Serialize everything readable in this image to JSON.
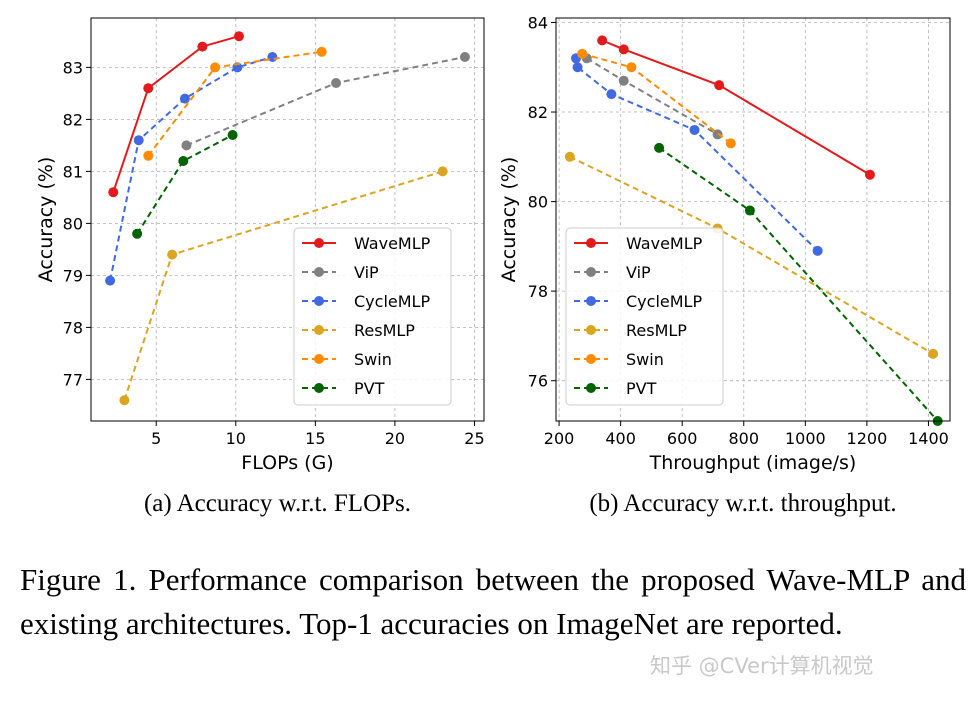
{
  "chart_data": [
    {
      "type": "line",
      "xlabel": "FLOPs (G)",
      "ylabel": "Accuracy (%)",
      "xlim": [
        0.9,
        25.6
      ],
      "ylim": [
        76.2,
        83.95
      ],
      "xticks": [
        5,
        10,
        15,
        20,
        25
      ],
      "yticks": [
        77,
        78,
        79,
        80,
        81,
        82,
        83
      ],
      "grid": true,
      "legend_position": "bottom-right",
      "caption": "(a) Accuracy w.r.t. FLOPs.",
      "series": [
        {
          "name": "WaveMLP",
          "color": "#e31a1c",
          "dash": "solid",
          "points": [
            [
              2.3,
              80.6
            ],
            [
              4.5,
              82.6
            ],
            [
              7.9,
              83.4
            ],
            [
              10.2,
              83.6
            ]
          ]
        },
        {
          "name": "ViP",
          "color": "#808080",
          "dash": "dashed",
          "points": [
            [
              6.9,
              81.5
            ],
            [
              16.3,
              82.7
            ],
            [
              24.4,
              83.2
            ]
          ]
        },
        {
          "name": "CycleMLP",
          "color": "#4169e1",
          "dash": "dashed",
          "points": [
            [
              2.1,
              78.9
            ],
            [
              3.9,
              81.6
            ],
            [
              6.8,
              82.4
            ],
            [
              10.1,
              83.0
            ],
            [
              12.3,
              83.2
            ]
          ]
        },
        {
          "name": "ResMLP",
          "color": "#daa520",
          "dash": "dashed",
          "points": [
            [
              3.0,
              76.6
            ],
            [
              6.0,
              79.4
            ],
            [
              23.0,
              81.0
            ]
          ]
        },
        {
          "name": "Swin",
          "color": "#ff8c00",
          "dash": "dashed",
          "points": [
            [
              4.5,
              81.3
            ],
            [
              8.7,
              83.0
            ],
            [
              15.4,
              83.3
            ]
          ]
        },
        {
          "name": "PVT",
          "color": "#006400",
          "dash": "dashed",
          "points": [
            [
              3.8,
              79.8
            ],
            [
              6.7,
              81.2
            ],
            [
              9.8,
              81.7
            ]
          ]
        }
      ]
    },
    {
      "type": "line",
      "xlabel": "Throughput (image/s)",
      "ylabel": "Accuracy (%)",
      "xlim": [
        190,
        1470
      ],
      "ylim": [
        75.1,
        84.1
      ],
      "xticks": [
        200,
        400,
        600,
        800,
        1000,
        1200,
        1400
      ],
      "yticks": [
        76,
        78,
        80,
        82,
        84
      ],
      "grid": true,
      "legend_position": "bottom-left",
      "caption": "(b) Accuracy w.r.t. throughput.",
      "series": [
        {
          "name": "WaveMLP",
          "color": "#e31a1c",
          "dash": "solid",
          "points": [
            [
              340,
              83.6
            ],
            [
              410,
              83.4
            ],
            [
              720,
              82.6
            ],
            [
              1210,
              80.6
            ]
          ]
        },
        {
          "name": "ViP",
          "color": "#808080",
          "dash": "dashed",
          "points": [
            [
              290,
              83.2
            ],
            [
              410,
              82.7
            ],
            [
              715,
              81.5
            ]
          ]
        },
        {
          "name": "CycleMLP",
          "color": "#4169e1",
          "dash": "dashed",
          "points": [
            [
              255,
              83.2
            ],
            [
              260,
              83.0
            ],
            [
              370,
              82.4
            ],
            [
              640,
              81.6
            ],
            [
              1040,
              78.9
            ]
          ]
        },
        {
          "name": "ResMLP",
          "color": "#daa520",
          "dash": "dashed",
          "points": [
            [
              235,
              81.0
            ],
            [
              715,
              79.4
            ],
            [
              1415,
              76.6
            ]
          ]
        },
        {
          "name": "Swin",
          "color": "#ff8c00",
          "dash": "dashed",
          "points": [
            [
              275,
              83.3
            ],
            [
              435,
              83.0
            ],
            [
              758,
              81.3
            ]
          ]
        },
        {
          "name": "PVT",
          "color": "#006400",
          "dash": "dashed",
          "points": [
            [
              525,
              81.2
            ],
            [
              820,
              79.8
            ],
            [
              1430,
              75.1
            ]
          ]
        }
      ]
    }
  ],
  "figure_caption": "Figure 1.  Performance comparison between the proposed Wave-MLP and existing architectures.  Top-1 accuracies on ImageNet are reported.",
  "watermark": "知乎 @CVer计算机视觉"
}
